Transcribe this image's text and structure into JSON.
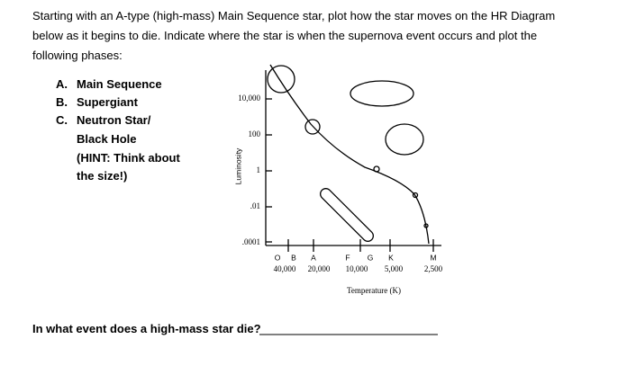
{
  "instructions": [
    "Starting with an A-type (high-mass) Main Sequence star, plot how the star moves on the HR Diagram",
    "below as it begins to die.  Indicate where the star is when the supernova event occurs and plot the",
    "following phases:"
  ],
  "phases": [
    {
      "letter": "A.",
      "lines": [
        "Main Sequence"
      ]
    },
    {
      "letter": "B.",
      "lines": [
        "Supergiant"
      ]
    },
    {
      "letter": "C.",
      "lines": [
        "Neutron Star/",
        "Black Hole"
      ]
    }
  ],
  "hint": [
    "(HINT: Think about",
    "the size!)"
  ],
  "diagram": {
    "y_axis_label": "Luminosity",
    "luminosity_ticks": [
      "10,000",
      "100",
      "1",
      ".01",
      ".0001"
    ],
    "spectral_classes": [
      "O",
      "B",
      "A",
      "F",
      "G",
      "K",
      "M"
    ],
    "temperatures": [
      "40,000",
      "20,000",
      "10,000",
      "5,000",
      "2,500"
    ],
    "x_axis_label": "Temperature (K)"
  },
  "question": "In what event does a high-mass star die?"
}
